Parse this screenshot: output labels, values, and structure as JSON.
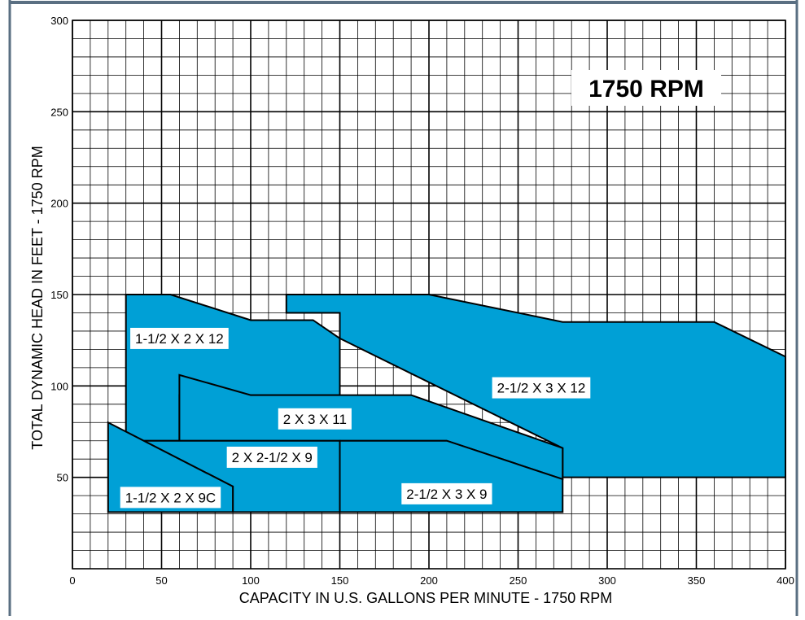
{
  "colors": {
    "background": "#ffffff",
    "frame": "#5a6f82",
    "grid": "#000000",
    "region_fill": "#00a0d6",
    "region_stroke": "#000000",
    "label_bg": "#ffffff",
    "text": "#000000"
  },
  "chart_data": {
    "type": "area",
    "title": "1750 RPM",
    "xlabel": "CAPACITY IN U.S. GALLONS PER MINUTE - 1750 RPM",
    "ylabel": "TOTAL DYNAMIC HEAD IN FEET - 1750 RPM",
    "xlim": [
      0,
      400
    ],
    "ylim": [
      0,
      300
    ],
    "xticks": [
      0,
      50,
      100,
      150,
      200,
      250,
      300,
      350,
      400
    ],
    "yticks": [
      50,
      100,
      150,
      200,
      250,
      300
    ],
    "x_minor_step": 10,
    "y_minor_step": 10,
    "grid": true,
    "series": [
      {
        "name": "2-1/2 X 3 X 12",
        "label_at": [
          263,
          99
        ],
        "points": [
          [
            120,
            150
          ],
          [
            200,
            150
          ],
          [
            275,
            135
          ],
          [
            360,
            135
          ],
          [
            400,
            116
          ],
          [
            400,
            50
          ],
          [
            275,
            50
          ],
          [
            275,
            66
          ],
          [
            150,
            126
          ],
          [
            150,
            140
          ],
          [
            120,
            140
          ]
        ]
      },
      {
        "name": "1-1/2 X 2 X 12",
        "label_at": [
          60,
          126
        ],
        "points": [
          [
            30,
            150
          ],
          [
            55,
            150
          ],
          [
            100,
            136
          ],
          [
            135,
            136
          ],
          [
            150,
            126
          ],
          [
            150,
            95
          ],
          [
            60,
            95
          ],
          [
            60,
            70
          ],
          [
            40,
            70
          ],
          [
            30,
            75
          ]
        ]
      },
      {
        "name": "2 X 3 X 11",
        "label_at": [
          136,
          82
        ],
        "points": [
          [
            60,
            106
          ],
          [
            100,
            95
          ],
          [
            190,
            95
          ],
          [
            275,
            66
          ],
          [
            275,
            49
          ],
          [
            210,
            70
          ],
          [
            60,
            70
          ]
        ]
      },
      {
        "name": "2 X 2-1/2 X 9",
        "label_at": [
          112,
          61
        ],
        "points": [
          [
            40,
            70
          ],
          [
            150,
            70
          ],
          [
            150,
            31
          ],
          [
            90,
            31
          ],
          [
            90,
            45
          ]
        ]
      },
      {
        "name": "2-1/2 X 3 X 9",
        "label_at": [
          210,
          41
        ],
        "points": [
          [
            150,
            70
          ],
          [
            210,
            70
          ],
          [
            275,
            49
          ],
          [
            275,
            31
          ],
          [
            150,
            31
          ]
        ]
      },
      {
        "name": "1-1/2 X 2 X 9C",
        "label_at": [
          55,
          39
        ],
        "points": [
          [
            20,
            80
          ],
          [
            90,
            45
          ],
          [
            90,
            31
          ],
          [
            20,
            31
          ]
        ]
      }
    ]
  }
}
